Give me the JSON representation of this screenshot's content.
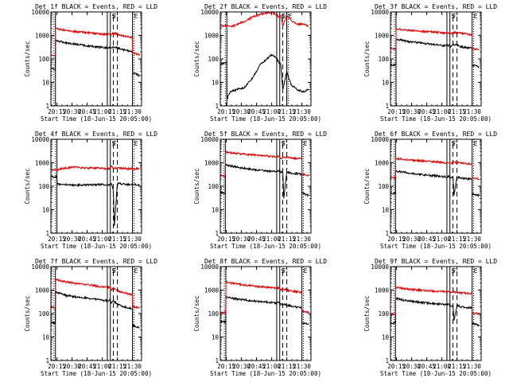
{
  "figure": {
    "ylabel": "Counts/sec",
    "xlabel": "Start Time (18-Jun-15 20:05:00)",
    "y_tick_labels": [
      "1",
      "10",
      "100",
      "1000",
      "10000"
    ],
    "x_tick_labels": [
      "20:15",
      "20:30",
      "20:45",
      "21:00",
      "21:15",
      "21:30"
    ],
    "flags": [
      "S",
      "F",
      "E"
    ],
    "colors": {
      "black_series": "#000000",
      "red_series": "#e00000",
      "axis": "#000000",
      "background": "#ffffff"
    }
  },
  "chart_data": [
    {
      "type": "line",
      "title": "Det 1f BLACK = Events, RED = LLD",
      "xlabel": "Start Time (18-Jun-15 20:05:00)",
      "ylabel": "Counts/sec",
      "x_unit": "minutes after 20:05:00",
      "xlim": [
        4,
        94
      ],
      "ylim": [
        1,
        10000
      ],
      "y_scale": "log",
      "saa_boundaries": [
        8.5,
        60,
        63,
        85
      ],
      "dashed_markers": [
        66,
        70
      ],
      "series": [
        {
          "name": "BLACK = Events",
          "x": [
            4,
            8.4,
            8.6,
            20,
            40,
            60,
            62.9,
            63.1,
            66,
            70,
            75,
            85,
            85.1,
            92
          ],
          "values": [
            40,
            35,
            600,
            480,
            360,
            290,
            300,
            280,
            330,
            300,
            250,
            200,
            25,
            20
          ]
        },
        {
          "name": "RED = LLD",
          "x": [
            4,
            8.4,
            8.6,
            20,
            40,
            60,
            62.9,
            63.1,
            66,
            70,
            75,
            85,
            85.1,
            92
          ],
          "values": [
            150,
            140,
            2000,
            1600,
            1300,
            1100,
            1150,
            1000,
            1250,
            1150,
            950,
            800,
            180,
            150
          ]
        }
      ]
    },
    {
      "type": "line",
      "title": "Det 2f BLACK = Events, RED = LLD",
      "xlabel": "Start Time (18-Jun-15 20:05:00)",
      "ylabel": "Counts/sec",
      "x_unit": "minutes after 20:05:00",
      "xlim": [
        4,
        94
      ],
      "ylim": [
        1,
        10000
      ],
      "y_scale": "log",
      "saa_boundaries": [
        10.5,
        60,
        63,
        70
      ],
      "dashed_markers": [
        66,
        70
      ],
      "series": [
        {
          "name": "BLACK = Events",
          "x": [
            4,
            10,
            10.4,
            10.6,
            14,
            20,
            28,
            36,
            44,
            50,
            55,
            58,
            60,
            62,
            64,
            66,
            70,
            74,
            80,
            86,
            92
          ],
          "values": [
            60,
            70,
            60,
            2,
            4,
            5,
            6,
            15,
            60,
            100,
            150,
            120,
            100,
            70,
            60,
            5,
            30,
            8,
            5,
            4,
            5
          ]
        },
        {
          "name": "RED = LLD",
          "x": [
            4,
            10,
            14,
            20,
            28,
            36,
            44,
            50,
            55,
            58,
            60,
            62,
            64,
            66,
            70,
            74,
            80,
            86,
            92
          ],
          "values": [
            2500,
            2600,
            2400,
            2800,
            4000,
            6000,
            8000,
            9000,
            9500,
            8500,
            7500,
            6000,
            7000,
            2500,
            7500,
            4500,
            3000,
            3000,
            2500
          ]
        }
      ]
    },
    {
      "type": "line",
      "title": "Det 3f BLACK = Events, RED = LLD",
      "xlabel": "Start Time (18-Jun-15 20:05:00)",
      "ylabel": "Counts/sec",
      "x_unit": "minutes after 20:05:00",
      "xlim": [
        4,
        94
      ],
      "ylim": [
        1,
        10000
      ],
      "y_scale": "log",
      "saa_boundaries": [
        9.5,
        60,
        63,
        85
      ],
      "dashed_markers": [
        66,
        70
      ],
      "series": [
        {
          "name": "BLACK = Events",
          "x": [
            4,
            9.4,
            9.6,
            20,
            40,
            60,
            62.9,
            63.1,
            66,
            70,
            75,
            85,
            85.1,
            92
          ],
          "values": [
            55,
            55,
            700,
            560,
            450,
            360,
            380,
            300,
            400,
            380,
            320,
            280,
            55,
            45
          ]
        },
        {
          "name": "RED = LLD",
          "x": [
            4,
            9.4,
            9.6,
            20,
            40,
            60,
            62.9,
            63.1,
            66,
            70,
            75,
            85,
            85.1,
            92
          ],
          "values": [
            260,
            260,
            1900,
            1700,
            1450,
            1250,
            1300,
            1100,
            1350,
            1300,
            1200,
            1050,
            280,
            240
          ]
        }
      ]
    },
    {
      "type": "line",
      "title": "Det 4f BLACK = Events, RED = LLD",
      "xlabel": "Start Time (18-Jun-15 20:05:00)",
      "ylabel": "Counts/sec",
      "x_unit": "minutes after 20:05:00",
      "xlim": [
        4,
        94
      ],
      "ylim": [
        1,
        10000
      ],
      "y_scale": "log",
      "saa_boundaries": [
        10,
        60,
        63,
        85
      ],
      "dashed_markers": [
        66,
        70
      ],
      "series": [
        {
          "name": "BLACK = Events",
          "x": [
            4,
            9.8,
            10.2,
            15,
            25,
            40,
            55,
            62,
            64,
            66,
            67,
            70,
            80,
            92
          ],
          "values": [
            250,
            250,
            130,
            120,
            110,
            115,
            120,
            110,
            130,
            60,
            2,
            130,
            120,
            115
          ]
        },
        {
          "name": "RED = LLD",
          "x": [
            4,
            9.8,
            10.2,
            15,
            25,
            40,
            55,
            62,
            64,
            66,
            70,
            80,
            92
          ],
          "values": [
            500,
            500,
            500,
            550,
            650,
            600,
            580,
            550,
            750,
            580,
            600,
            560,
            550
          ]
        }
      ]
    },
    {
      "type": "line",
      "title": "Det 5f BLACK = Events, RED = LLD",
      "xlabel": "Start Time (18-Jun-15 20:05:00)",
      "ylabel": "Counts/sec",
      "x_unit": "minutes after 20:05:00",
      "xlim": [
        4,
        94
      ],
      "ylim": [
        1,
        10000
      ],
      "y_scale": "log",
      "saa_boundaries": [
        9,
        60,
        63,
        85
      ],
      "dashed_markers": [
        66,
        70
      ],
      "series": [
        {
          "name": "BLACK = Events",
          "x": [
            4,
            8.9,
            9.1,
            20,
            40,
            60,
            62.9,
            63.1,
            66,
            67,
            70,
            75,
            85,
            85.1,
            92
          ],
          "values": [
            55,
            50,
            800,
            650,
            500,
            420,
            450,
            380,
            430,
            30,
            420,
            350,
            330,
            50,
            40
          ]
        },
        {
          "name": "RED = LLD",
          "x": [
            4,
            8.9,
            9.1,
            20,
            40,
            60,
            62.9,
            63.1,
            66,
            70,
            75,
            85,
            85.1,
            92
          ],
          "values": [
            280,
            260,
            2900,
            2500,
            2100,
            1800,
            1900,
            1500,
            1700,
            1700,
            1600,
            1500,
            330,
            280
          ]
        }
      ]
    },
    {
      "type": "line",
      "title": "Det 6f BLACK = Events, RED = LLD",
      "xlabel": "Start Time (18-Jun-15 20:05:00)",
      "ylabel": "Counts/sec",
      "x_unit": "minutes after 20:05:00",
      "xlim": [
        4,
        94
      ],
      "ylim": [
        1,
        10000
      ],
      "y_scale": "log",
      "saa_boundaries": [
        9,
        60,
        63,
        85
      ],
      "dashed_markers": [
        66,
        70
      ],
      "series": [
        {
          "name": "BLACK = Events",
          "x": [
            4,
            8.9,
            9.1,
            20,
            40,
            60,
            62.9,
            63.1,
            66,
            67,
            70,
            75,
            85,
            85.1,
            92
          ],
          "values": [
            50,
            50,
            450,
            380,
            300,
            250,
            260,
            210,
            250,
            40,
            250,
            220,
            200,
            45,
            40
          ]
        },
        {
          "name": "RED = LLD",
          "x": [
            4,
            8.9,
            9.1,
            20,
            40,
            60,
            62.9,
            63.1,
            66,
            70,
            75,
            85,
            85.1,
            92
          ],
          "values": [
            230,
            230,
            1500,
            1350,
            1150,
            1000,
            1050,
            900,
            1050,
            1000,
            950,
            900,
            230,
            200
          ]
        }
      ]
    },
    {
      "type": "line",
      "title": "Det 7f BLACK = Events, RED = LLD",
      "xlabel": "Start Time (18-Jun-15 20:05:00)",
      "ylabel": "Counts/sec",
      "x_unit": "minutes after 20:05:00",
      "xlim": [
        4,
        94
      ],
      "ylim": [
        1,
        10000
      ],
      "y_scale": "log",
      "saa_boundaries": [
        8.5,
        60,
        63,
        85
      ],
      "dashed_markers": [
        66,
        70
      ],
      "series": [
        {
          "name": "BLACK = Events",
          "x": [
            4,
            8.4,
            8.6,
            20,
            40,
            60,
            62.9,
            63.1,
            66,
            70,
            75,
            85,
            85.1,
            92
          ],
          "values": [
            40,
            40,
            800,
            580,
            450,
            350,
            380,
            280,
            330,
            260,
            200,
            160,
            30,
            25
          ]
        },
        {
          "name": "RED = LLD",
          "x": [
            4,
            8.4,
            8.6,
            20,
            40,
            60,
            62.9,
            63.1,
            66,
            70,
            75,
            85,
            85.1,
            92
          ],
          "values": [
            200,
            180,
            2800,
            2200,
            1700,
            1300,
            1350,
            1000,
            1200,
            950,
            800,
            650,
            200,
            170
          ]
        }
      ]
    },
    {
      "type": "line",
      "title": "Det 8f BLACK = Events, RED = LLD",
      "xlabel": "Start Time (18-Jun-15 20:05:00)",
      "ylabel": "Counts/sec",
      "x_unit": "minutes after 20:05:00",
      "xlim": [
        4,
        94
      ],
      "ylim": [
        1,
        10000
      ],
      "y_scale": "log",
      "saa_boundaries": [
        9.5,
        60,
        63,
        85
      ],
      "dashed_markers": [
        66,
        70
      ],
      "series": [
        {
          "name": "BLACK = Events",
          "x": [
            4,
            9.4,
            9.6,
            20,
            40,
            60,
            62.9,
            63.1,
            66,
            70,
            75,
            85,
            85.1,
            92
          ],
          "values": [
            45,
            45,
            500,
            420,
            330,
            280,
            300,
            240,
            260,
            230,
            200,
            180,
            40,
            35
          ]
        },
        {
          "name": "RED = LLD",
          "x": [
            4,
            9.4,
            9.6,
            20,
            40,
            60,
            62.9,
            63.1,
            66,
            70,
            75,
            85,
            85.1,
            92
          ],
          "values": [
            110,
            110,
            2200,
            1800,
            1450,
            1200,
            1250,
            1000,
            1100,
            1000,
            900,
            800,
            130,
            110
          ]
        }
      ]
    },
    {
      "type": "line",
      "title": "Det 9f BLACK = Events, RED = LLD",
      "xlabel": "Start Time (18-Jun-15 20:05:00)",
      "ylabel": "Counts/sec",
      "x_unit": "minutes after 20:05:00",
      "xlim": [
        4,
        94
      ],
      "ylim": [
        1,
        10000
      ],
      "y_scale": "log",
      "saa_boundaries": [
        9,
        60,
        63,
        85
      ],
      "dashed_markers": [
        66,
        70
      ],
      "series": [
        {
          "name": "BLACK = Events",
          "x": [
            4,
            8.9,
            9.1,
            20,
            40,
            60,
            62.9,
            63.1,
            66,
            67,
            70,
            75,
            85,
            85.1,
            92
          ],
          "values": [
            40,
            40,
            450,
            350,
            280,
            240,
            250,
            200,
            230,
            50,
            220,
            190,
            170,
            40,
            30
          ]
        },
        {
          "name": "RED = LLD",
          "x": [
            4,
            8.9,
            9.1,
            20,
            40,
            60,
            62.9,
            63.1,
            66,
            70,
            75,
            85,
            85.1,
            92
          ],
          "values": [
            90,
            90,
            1300,
            1100,
            950,
            850,
            900,
            750,
            850,
            800,
            750,
            700,
            110,
            95
          ]
        }
      ]
    }
  ]
}
